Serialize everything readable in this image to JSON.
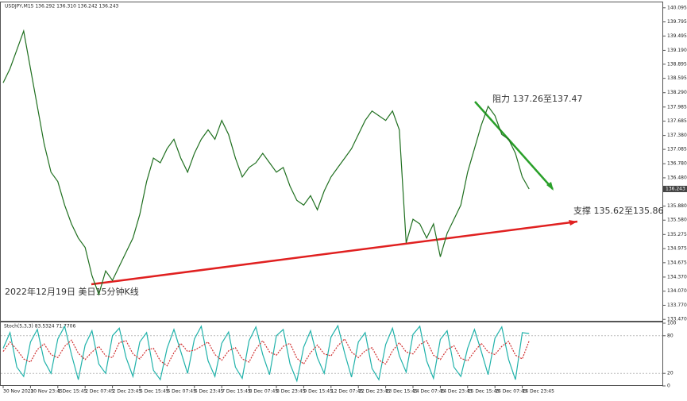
{
  "chart_data": [
    {
      "type": "line",
      "title": "USDJPY,M15 136.292 136.310 136.242 136.243",
      "annotations": [
        "阻力 137.26至137.47",
        "支撑 135.62至135.86",
        "2022年12月19日 美日15分钟K线"
      ],
      "last_price": 136.243,
      "color": "#1f6f1f",
      "categories": [
        "30 Nov 2022",
        null,
        null,
        null,
        "30 Nov 23:45",
        null,
        null,
        null,
        "1 Dec 15:45",
        null,
        null,
        null,
        "2 Dec 07:45",
        null,
        null,
        null,
        "2 Dec 23:45",
        null,
        null,
        null,
        "5 Dec 15:45",
        null,
        null,
        null,
        "6 Dec 07:45",
        null,
        null,
        null,
        "6 Dec 23:45",
        null,
        null,
        null,
        "7 Dec 15:45",
        null,
        null,
        null,
        "8 Dec 07:45",
        null,
        null,
        null,
        "8 Dec 23:45",
        null,
        null,
        null,
        "9 Dec 15:45",
        null,
        null,
        null,
        "12 Dec 07:45",
        null,
        null,
        null,
        "12 Dec 23:45",
        null,
        null,
        null,
        "13 Dec 15:45",
        null,
        null,
        null,
        "14 Dec 07:45",
        null,
        null,
        null,
        "14 Dec 23:45",
        null,
        null,
        null,
        "15 Dec 15:45",
        null,
        null,
        null,
        "16 Dec 07:45",
        null,
        null,
        null,
        "16 Dec 23:45",
        null
      ],
      "values": [
        138.5,
        138.8,
        139.2,
        139.6,
        138.8,
        138.0,
        137.2,
        136.6,
        136.4,
        135.9,
        135.5,
        135.2,
        135.0,
        134.4,
        134.0,
        134.5,
        134.3,
        134.6,
        134.9,
        135.2,
        135.7,
        136.4,
        136.9,
        136.8,
        137.1,
        137.3,
        136.9,
        136.6,
        137.0,
        137.3,
        137.5,
        137.3,
        137.7,
        137.4,
        136.9,
        136.5,
        136.7,
        136.8,
        137.0,
        136.8,
        136.6,
        136.7,
        136.3,
        136.0,
        135.9,
        136.1,
        135.8,
        136.2,
        136.5,
        136.7,
        136.9,
        137.1,
        137.4,
        137.7,
        137.9,
        137.8,
        137.7,
        137.9,
        137.5,
        135.1,
        135.6,
        135.5,
        135.2,
        135.5,
        134.8,
        135.3,
        135.6,
        135.9,
        136.6,
        137.1,
        137.6,
        138.0,
        137.8,
        137.4,
        137.3,
        137.0,
        136.5,
        136.243
      ],
      "ylim": [
        133.44,
        140.21
      ],
      "yticks": [
        140.095,
        139.795,
        139.495,
        {
          "value": 139.19,
          "label": "139.190"
        },
        138.895,
        138.595,
        {
          "value": 138.29,
          "label": "138.290"
        },
        137.985,
        137.685,
        {
          "value": 137.38,
          "label": "137.380"
        },
        137.085,
        {
          "value": 136.78,
          "label": "136.780"
        },
        {
          "value": 136.48,
          "label": "136.480"
        },
        {
          "value": 135.88,
          "label": "135.880"
        },
        {
          "value": 135.58,
          "label": "135.580"
        },
        135.275,
        134.975,
        134.675,
        {
          "value": 134.37,
          "label": "134.370"
        },
        {
          "value": 134.07,
          "label": "134.070"
        },
        {
          "value": 133.77,
          "label": "133.770"
        },
        {
          "value": 133.47,
          "label": "133.470"
        }
      ]
    },
    {
      "type": "line",
      "title": "Stoch(5,3,3) 83.5324 71.7706",
      "ylim": [
        0,
        100
      ],
      "yticks": [
        0,
        20,
        80,
        100
      ],
      "series": [
        {
          "color": "#20b2aa",
          "values": [
            60,
            85,
            30,
            15,
            70,
            90,
            40,
            20,
            75,
            95,
            50,
            10,
            65,
            88,
            35,
            20,
            80,
            92,
            45,
            15,
            70,
            85,
            25,
            10,
            60,
            90,
            55,
            20,
            75,
            95,
            40,
            15,
            68,
            86,
            30,
            12,
            72,
            94,
            50,
            18,
            80,
            90,
            35,
            8,
            62,
            88,
            45,
            20,
            78,
            96,
            52,
            14,
            70,
            85,
            28,
            10,
            66,
            92,
            48,
            22,
            82,
            95,
            40,
            12,
            74,
            88,
            30,
            15,
            60,
            90,
            55,
            18,
            76,
            94,
            42,
            10,
            85,
            83.5324
          ]
        },
        {
          "color": "#d03030",
          "values": [
            55,
            70,
            58,
            43,
            38,
            58,
            67,
            50,
            45,
            63,
            73,
            52,
            42,
            54,
            63,
            48,
            45,
            69,
            72,
            51,
            43,
            57,
            60,
            40,
            32,
            53,
            68,
            55,
            57,
            63,
            70,
            50,
            41,
            56,
            61,
            43,
            38,
            59,
            72,
            54,
            49,
            63,
            68,
            44,
            35,
            53,
            65,
            51,
            48,
            64,
            75,
            54,
            45,
            56,
            61,
            41,
            35,
            56,
            69,
            54,
            51,
            66,
            72,
            49,
            42,
            58,
            64,
            44,
            40,
            55,
            68,
            54,
            50,
            63,
            71,
            49,
            43,
            71.7706
          ]
        }
      ]
    }
  ]
}
